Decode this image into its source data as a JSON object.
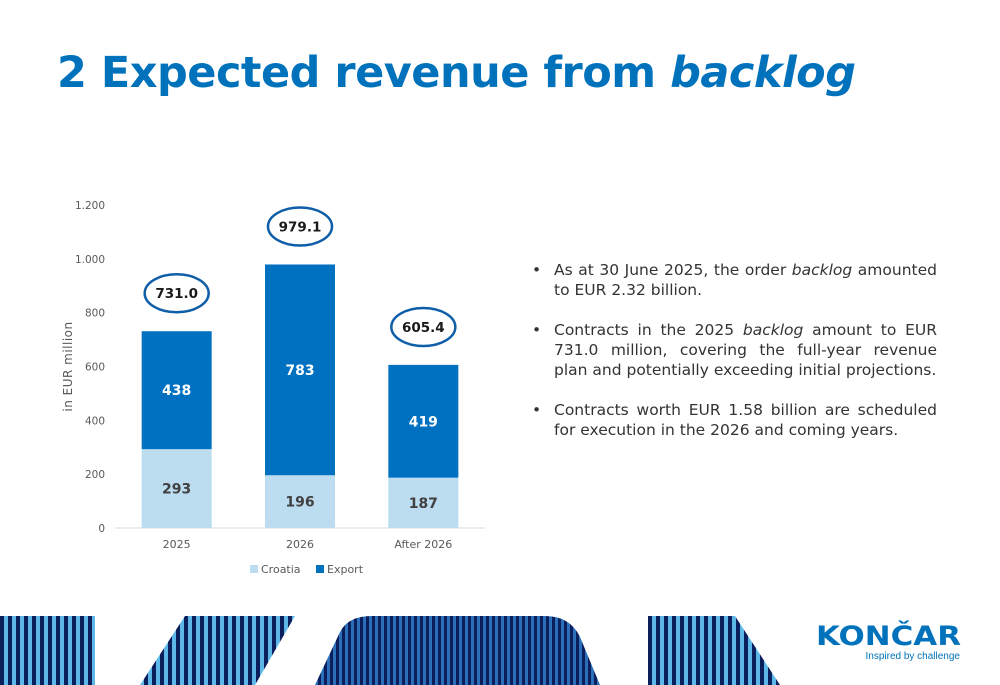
{
  "slide": {
    "title_plain": "2 Expected revenue from ",
    "title_italic": "backlog"
  },
  "bullets": [
    {
      "parts": [
        "As at 30 June 2025, the order ",
        "backlog",
        " amounted to EUR 2.32 billion."
      ]
    },
    {
      "parts": [
        "Contracts in the 2025 ",
        "backlog",
        " amount to EUR 731.0 million, covering the full-year revenue plan and potentially exceeding initial projections."
      ]
    },
    {
      "parts": [
        "Contracts worth EUR 1.58 billion are scheduled for execution in the 2026 and coming years.",
        "",
        ""
      ]
    }
  ],
  "chart_data": {
    "type": "bar",
    "stacked": true,
    "categories": [
      "2025",
      "2026",
      "After 2026"
    ],
    "series": [
      {
        "name": "Croatia",
        "values": [
          293,
          196,
          187
        ],
        "labels": [
          "293",
          "196",
          "187"
        ],
        "color": "#bcdcf0"
      },
      {
        "name": "Export",
        "values": [
          438,
          783,
          419
        ],
        "labels": [
          "438",
          "783",
          "419"
        ],
        "color": "#0070c0"
      }
    ],
    "totals": [
      731.0,
      979.1,
      605.4
    ],
    "total_labels": [
      "731.0",
      "979.1",
      "605.4"
    ],
    "ylabel": "in EUR million",
    "ylim": [
      0,
      1200
    ],
    "yticks": [
      0,
      200,
      400,
      600,
      800,
      1000,
      1200
    ],
    "ytick_labels": [
      "0",
      "200",
      "400",
      "600",
      "800",
      "1.000",
      "1.200"
    ],
    "legend_position": "bottom",
    "grid": false
  },
  "logo": {
    "name": "KONČAR",
    "tagline": "Inspired by challenge"
  },
  "colors": {
    "brand_blue": "#0072bc",
    "navy": "#0a1f5c",
    "light_blue": "#5db8e8"
  }
}
